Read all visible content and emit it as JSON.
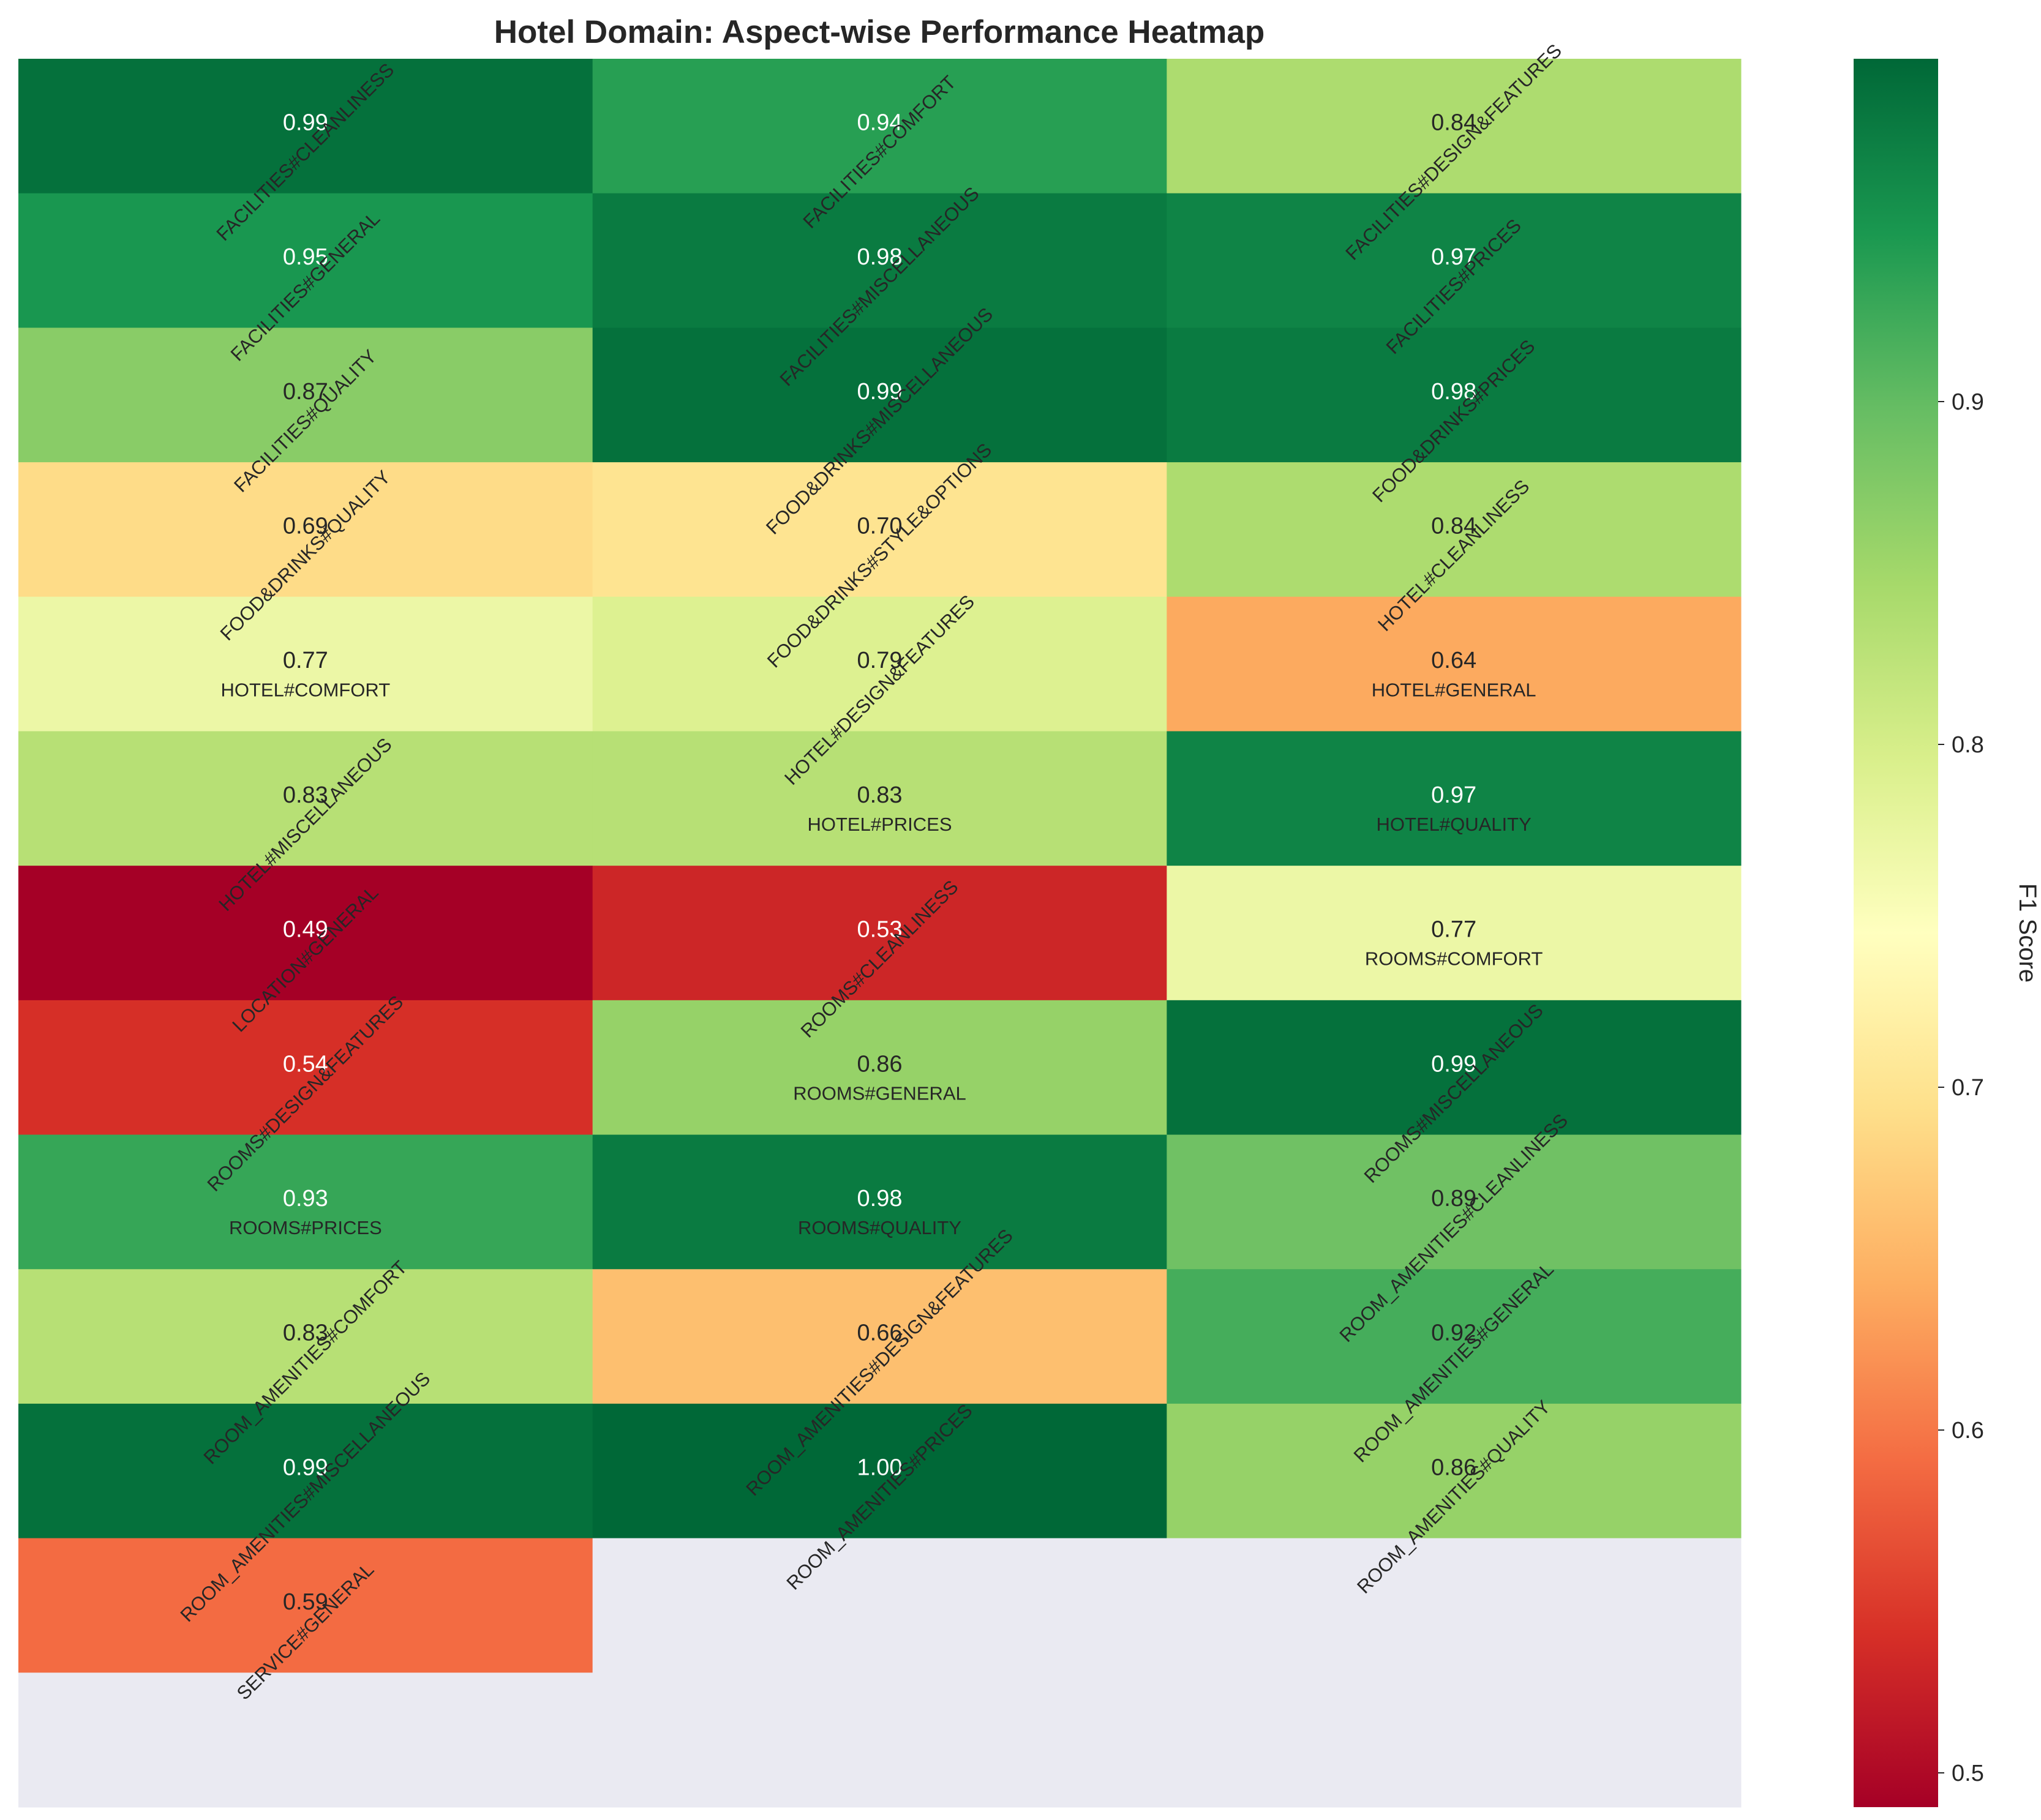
{
  "chart_data": {
    "type": "heatmap",
    "title": "Hotel Domain: Aspect-wise Performance Heatmap",
    "rows": 12,
    "columns": 3,
    "cells": [
      {
        "aspect": "FACILITIES#CLEANLINESS",
        "value": 0.99,
        "display": "0.99"
      },
      {
        "aspect": "FACILITIES#COMFORT",
        "value": 0.94,
        "display": "0.94"
      },
      {
        "aspect": "FACILITIES#DESIGN&FEATURES",
        "value": 0.84,
        "display": "0.84"
      },
      {
        "aspect": "FACILITIES#GENERAL",
        "value": 0.95,
        "display": "0.95"
      },
      {
        "aspect": "FACILITIES#MISCELLANEOUS",
        "value": 0.98,
        "display": "0.98"
      },
      {
        "aspect": "FACILITIES#PRICES",
        "value": 0.97,
        "display": "0.97"
      },
      {
        "aspect": "FACILITIES#QUALITY",
        "value": 0.87,
        "display": "0.87"
      },
      {
        "aspect": "FOOD&DRINKS#MISCELLANEOUS",
        "value": 0.99,
        "display": "0.99"
      },
      {
        "aspect": "FOOD&DRINKS#PRICES",
        "value": 0.98,
        "display": "0.98"
      },
      {
        "aspect": "FOOD&DRINKS#QUALITY",
        "value": 0.69,
        "display": "0.69"
      },
      {
        "aspect": "FOOD&DRINKS#STYLE&OPTIONS",
        "value": 0.7,
        "display": "0.70"
      },
      {
        "aspect": "HOTEL#CLEANLINESS",
        "value": 0.84,
        "display": "0.84"
      },
      {
        "aspect": "HOTEL#COMFORT",
        "value": 0.77,
        "display": "0.77"
      },
      {
        "aspect": "HOTEL#DESIGN&FEATURES",
        "value": 0.79,
        "display": "0.79"
      },
      {
        "aspect": "HOTEL#GENERAL",
        "value": 0.64,
        "display": "0.64"
      },
      {
        "aspect": "HOTEL#MISCELLANEOUS",
        "value": 0.83,
        "display": "0.83"
      },
      {
        "aspect": "HOTEL#PRICES",
        "value": 0.83,
        "display": "0.83"
      },
      {
        "aspect": "HOTEL#QUALITY",
        "value": 0.97,
        "display": "0.97"
      },
      {
        "aspect": "LOCATION#GENERAL",
        "value": 0.49,
        "display": "0.49"
      },
      {
        "aspect": "ROOMS#CLEANLINESS",
        "value": 0.53,
        "display": "0.53"
      },
      {
        "aspect": "ROOMS#COMFORT",
        "value": 0.77,
        "display": "0.77"
      },
      {
        "aspect": "ROOMS#DESIGN&FEATURES",
        "value": 0.54,
        "display": "0.54"
      },
      {
        "aspect": "ROOMS#GENERAL",
        "value": 0.86,
        "display": "0.86"
      },
      {
        "aspect": "ROOMS#MISCELLANEOUS",
        "value": 0.99,
        "display": "0.99"
      },
      {
        "aspect": "ROOMS#PRICES",
        "value": 0.93,
        "display": "0.93"
      },
      {
        "aspect": "ROOMS#QUALITY",
        "value": 0.98,
        "display": "0.98"
      },
      {
        "aspect": "ROOM_AMENITIES#CLEANLINESS",
        "value": 0.89,
        "display": "0.89"
      },
      {
        "aspect": "ROOM_AMENITIES#COMFORT",
        "value": 0.83,
        "display": "0.83"
      },
      {
        "aspect": "ROOM_AMENITIES#DESIGN&FEATURES",
        "value": 0.66,
        "display": "0.66"
      },
      {
        "aspect": "ROOM_AMENITIES#GENERAL",
        "value": 0.92,
        "display": "0.92"
      },
      {
        "aspect": "ROOM_AMENITIES#MISCELLANEOUS",
        "value": 0.99,
        "display": "0.99"
      },
      {
        "aspect": "ROOM_AMENITIES#PRICES",
        "value": 1.0,
        "display": "1.00"
      },
      {
        "aspect": "ROOM_AMENITIES#QUALITY",
        "value": 0.86,
        "display": "0.86"
      },
      {
        "aspect": "SERVICE#GENERAL",
        "value": 0.59,
        "display": "0.59"
      }
    ],
    "colorbar": {
      "label": "F1 Score",
      "vmin": 0.49,
      "vmax": 1.0,
      "ticks": [
        0.5,
        0.6,
        0.7,
        0.8,
        0.9
      ],
      "tick_labels": [
        "0.5",
        "0.6",
        "0.7",
        "0.8",
        "0.9"
      ],
      "colormap": "RdYlGn"
    },
    "empty_cell_color": "#eaeaf2"
  }
}
